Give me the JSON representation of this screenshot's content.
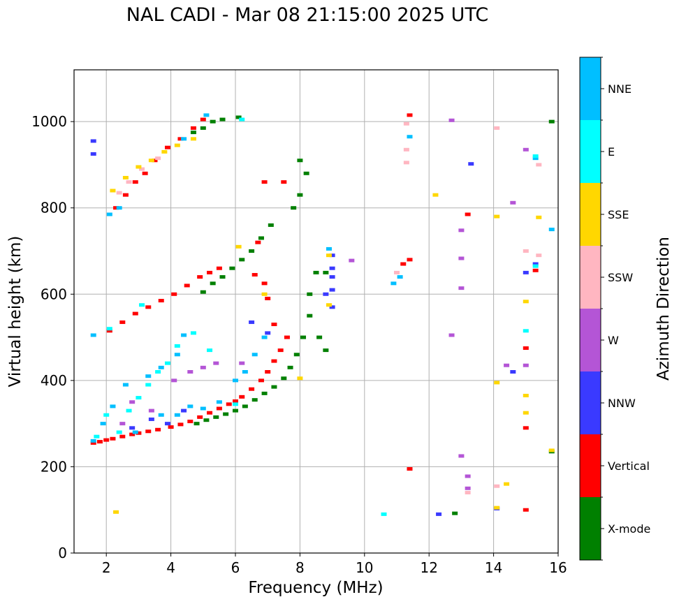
{
  "chart_data": {
    "type": "scatter",
    "title": "NAL CADI - Mar 08 21:15:00 2025 UTC",
    "xlabel": "Frequency (MHz)",
    "ylabel": "Virtual height (km)",
    "xlim": [
      1,
      16
    ],
    "ylim": [
      0,
      1120
    ],
    "xticks": [
      "2",
      "4",
      "6",
      "8",
      "10",
      "12",
      "14",
      "16"
    ],
    "yticks": [
      "0",
      "200",
      "400",
      "600",
      "800",
      "1000"
    ],
    "grid": true,
    "colorbar": {
      "label": "Azimuth Direction",
      "categories": [
        {
          "name": "X-mode",
          "color": "#008000"
        },
        {
          "name": "Vertical",
          "color": "#ff0000"
        },
        {
          "name": "NNW",
          "color": "#3a3aff"
        },
        {
          "name": "W",
          "color": "#b455d6"
        },
        {
          "name": "SSW",
          "color": "#ffb6c1"
        },
        {
          "name": "SSE",
          "color": "#ffd700"
        },
        {
          "name": "E",
          "color": "#00ffff"
        },
        {
          "name": "NNE",
          "color": "#00bfff"
        }
      ]
    },
    "series": [
      {
        "name": "Vertical",
        "points": [
          [
            1.6,
            255
          ],
          [
            1.8,
            258
          ],
          [
            2.0,
            262
          ],
          [
            2.2,
            265
          ],
          [
            2.5,
            270
          ],
          [
            2.8,
            275
          ],
          [
            3.0,
            278
          ],
          [
            3.3,
            282
          ],
          [
            3.6,
            286
          ],
          [
            4.0,
            292
          ],
          [
            4.3,
            298
          ],
          [
            4.6,
            305
          ],
          [
            4.9,
            315
          ],
          [
            5.2,
            325
          ],
          [
            5.5,
            335
          ],
          [
            5.8,
            345
          ],
          [
            6.0,
            352
          ],
          [
            6.2,
            362
          ],
          [
            6.5,
            380
          ],
          [
            6.8,
            400
          ],
          [
            7.0,
            420
          ],
          [
            7.2,
            445
          ],
          [
            7.4,
            470
          ],
          [
            7.6,
            500
          ],
          [
            2.1,
            515
          ],
          [
            2.5,
            535
          ],
          [
            2.9,
            555
          ],
          [
            3.3,
            570
          ],
          [
            3.7,
            585
          ],
          [
            4.1,
            600
          ],
          [
            4.5,
            620
          ],
          [
            4.9,
            640
          ],
          [
            5.2,
            650
          ],
          [
            5.5,
            660
          ],
          [
            2.3,
            800
          ],
          [
            2.6,
            830
          ],
          [
            2.9,
            860
          ],
          [
            3.2,
            880
          ],
          [
            3.5,
            910
          ],
          [
            3.9,
            940
          ],
          [
            4.3,
            960
          ],
          [
            4.7,
            985
          ],
          [
            5.0,
            1005
          ],
          [
            6.6,
            645
          ],
          [
            6.9,
            625
          ],
          [
            6.7,
            720
          ],
          [
            6.9,
            860
          ],
          [
            7.5,
            860
          ],
          [
            7.0,
            590
          ],
          [
            7.2,
            530
          ],
          [
            11.4,
            1015
          ],
          [
            11.2,
            670
          ],
          [
            11.4,
            680
          ],
          [
            11.4,
            195
          ],
          [
            13.2,
            785
          ],
          [
            15.0,
            475
          ],
          [
            15.0,
            290
          ],
          [
            15.0,
            100
          ],
          [
            15.3,
            655
          ]
        ]
      },
      {
        "name": "X-mode",
        "points": [
          [
            4.8,
            300
          ],
          [
            5.1,
            308
          ],
          [
            5.4,
            315
          ],
          [
            5.7,
            322
          ],
          [
            6.0,
            330
          ],
          [
            6.3,
            340
          ],
          [
            6.6,
            355
          ],
          [
            6.9,
            370
          ],
          [
            7.2,
            385
          ],
          [
            7.5,
            405
          ],
          [
            7.7,
            430
          ],
          [
            7.9,
            460
          ],
          [
            8.1,
            500
          ],
          [
            8.3,
            550
          ],
          [
            8.6,
            500
          ],
          [
            8.8,
            470
          ],
          [
            5.0,
            605
          ],
          [
            5.3,
            625
          ],
          [
            5.6,
            640
          ],
          [
            5.9,
            660
          ],
          [
            6.2,
            680
          ],
          [
            6.5,
            700
          ],
          [
            6.8,
            730
          ],
          [
            7.1,
            760
          ],
          [
            4.7,
            975
          ],
          [
            5.0,
            985
          ],
          [
            5.3,
            1000
          ],
          [
            5.6,
            1005
          ],
          [
            6.1,
            1010
          ],
          [
            7.8,
            800
          ],
          [
            8.0,
            830
          ],
          [
            8.2,
            880
          ],
          [
            8.0,
            910
          ],
          [
            8.5,
            650
          ],
          [
            8.8,
            650
          ],
          [
            12.8,
            92
          ],
          [
            15.8,
            235
          ],
          [
            15.8,
            1000
          ],
          [
            8.3,
            600
          ]
        ]
      },
      {
        "name": "NNE",
        "points": [
          [
            1.6,
            260
          ],
          [
            1.9,
            300
          ],
          [
            2.2,
            340
          ],
          [
            2.6,
            390
          ],
          [
            2.9,
            280
          ],
          [
            3.3,
            410
          ],
          [
            3.7,
            430
          ],
          [
            4.2,
            460
          ],
          [
            4.4,
            505
          ],
          [
            3.7,
            320
          ],
          [
            4.2,
            320
          ],
          [
            4.6,
            340
          ],
          [
            5.0,
            335
          ],
          [
            5.5,
            350
          ],
          [
            6.0,
            400
          ],
          [
            6.3,
            420
          ],
          [
            6.6,
            460
          ],
          [
            6.9,
            500
          ],
          [
            2.1,
            785
          ],
          [
            2.4,
            800
          ],
          [
            4.4,
            960
          ],
          [
            5.1,
            1015
          ],
          [
            1.6,
            505
          ],
          [
            11.1,
            640
          ],
          [
            10.9,
            625
          ],
          [
            11.4,
            965
          ],
          [
            15.3,
            915
          ],
          [
            15.8,
            750
          ],
          [
            8.9,
            705
          ]
        ]
      },
      {
        "name": "NNW",
        "points": [
          [
            1.6,
            955
          ],
          [
            1.6,
            925
          ],
          [
            2.8,
            290
          ],
          [
            3.4,
            310
          ],
          [
            3.9,
            300
          ],
          [
            4.4,
            330
          ],
          [
            6.5,
            535
          ],
          [
            7.0,
            510
          ],
          [
            9.0,
            690
          ],
          [
            9.0,
            660
          ],
          [
            9.0,
            640
          ],
          [
            9.0,
            610
          ],
          [
            9.0,
            570
          ],
          [
            8.8,
            600
          ],
          [
            12.3,
            90
          ],
          [
            13.3,
            902
          ],
          [
            14.6,
            420
          ],
          [
            14.1,
            103
          ],
          [
            15.0,
            650
          ],
          [
            15.3,
            670
          ]
        ]
      },
      {
        "name": "W",
        "points": [
          [
            2.5,
            300
          ],
          [
            2.8,
            350
          ],
          [
            3.4,
            330
          ],
          [
            4.1,
            400
          ],
          [
            4.6,
            420
          ],
          [
            5.0,
            430
          ],
          [
            5.4,
            440
          ],
          [
            6.2,
            440
          ],
          [
            12.7,
            1003
          ],
          [
            13.0,
            748
          ],
          [
            13.0,
            683
          ],
          [
            13.0,
            614
          ],
          [
            12.7,
            505
          ],
          [
            13.0,
            225
          ],
          [
            13.2,
            178
          ],
          [
            13.2,
            150
          ],
          [
            14.4,
            435
          ],
          [
            15.0,
            435
          ],
          [
            15.0,
            935
          ],
          [
            14.6,
            812
          ],
          [
            9.6,
            678
          ]
        ]
      },
      {
        "name": "SSW",
        "points": [
          [
            2.4,
            835
          ],
          [
            2.7,
            860
          ],
          [
            3.1,
            890
          ],
          [
            3.6,
            915
          ],
          [
            11.3,
            905
          ],
          [
            11.3,
            935
          ],
          [
            11.3,
            995
          ],
          [
            14.1,
            985
          ],
          [
            15.0,
            700
          ],
          [
            15.4,
            690
          ],
          [
            15.4,
            900
          ],
          [
            14.1,
            155
          ],
          [
            13.2,
            140
          ],
          [
            11.0,
            650
          ]
        ]
      },
      {
        "name": "SSE",
        "points": [
          [
            2.2,
            840
          ],
          [
            2.6,
            870
          ],
          [
            3.0,
            895
          ],
          [
            3.4,
            910
          ],
          [
            3.8,
            930
          ],
          [
            4.2,
            945
          ],
          [
            4.7,
            960
          ],
          [
            6.1,
            710
          ],
          [
            6.9,
            600
          ],
          [
            8.9,
            690
          ],
          [
            8.9,
            575
          ],
          [
            8.0,
            405
          ],
          [
            12.2,
            830
          ],
          [
            14.1,
            780
          ],
          [
            14.1,
            395
          ],
          [
            14.4,
            160
          ],
          [
            14.1,
            105
          ],
          [
            15.0,
            583
          ],
          [
            15.0,
            365
          ],
          [
            15.0,
            325
          ],
          [
            15.4,
            778
          ],
          [
            15.8,
            238
          ],
          [
            2.3,
            95
          ]
        ]
      },
      {
        "name": "E",
        "points": [
          [
            1.7,
            270
          ],
          [
            2.0,
            320
          ],
          [
            2.4,
            280
          ],
          [
            2.7,
            330
          ],
          [
            3.0,
            360
          ],
          [
            3.3,
            390
          ],
          [
            3.6,
            420
          ],
          [
            3.9,
            440
          ],
          [
            4.2,
            480
          ],
          [
            4.7,
            510
          ],
          [
            5.2,
            470
          ],
          [
            6.0,
            345
          ],
          [
            2.1,
            520
          ],
          [
            3.1,
            575
          ],
          [
            6.2,
            1005
          ],
          [
            10.6,
            90
          ],
          [
            15.0,
            515
          ],
          [
            15.3,
            665
          ],
          [
            15.3,
            920
          ]
        ]
      }
    ]
  }
}
